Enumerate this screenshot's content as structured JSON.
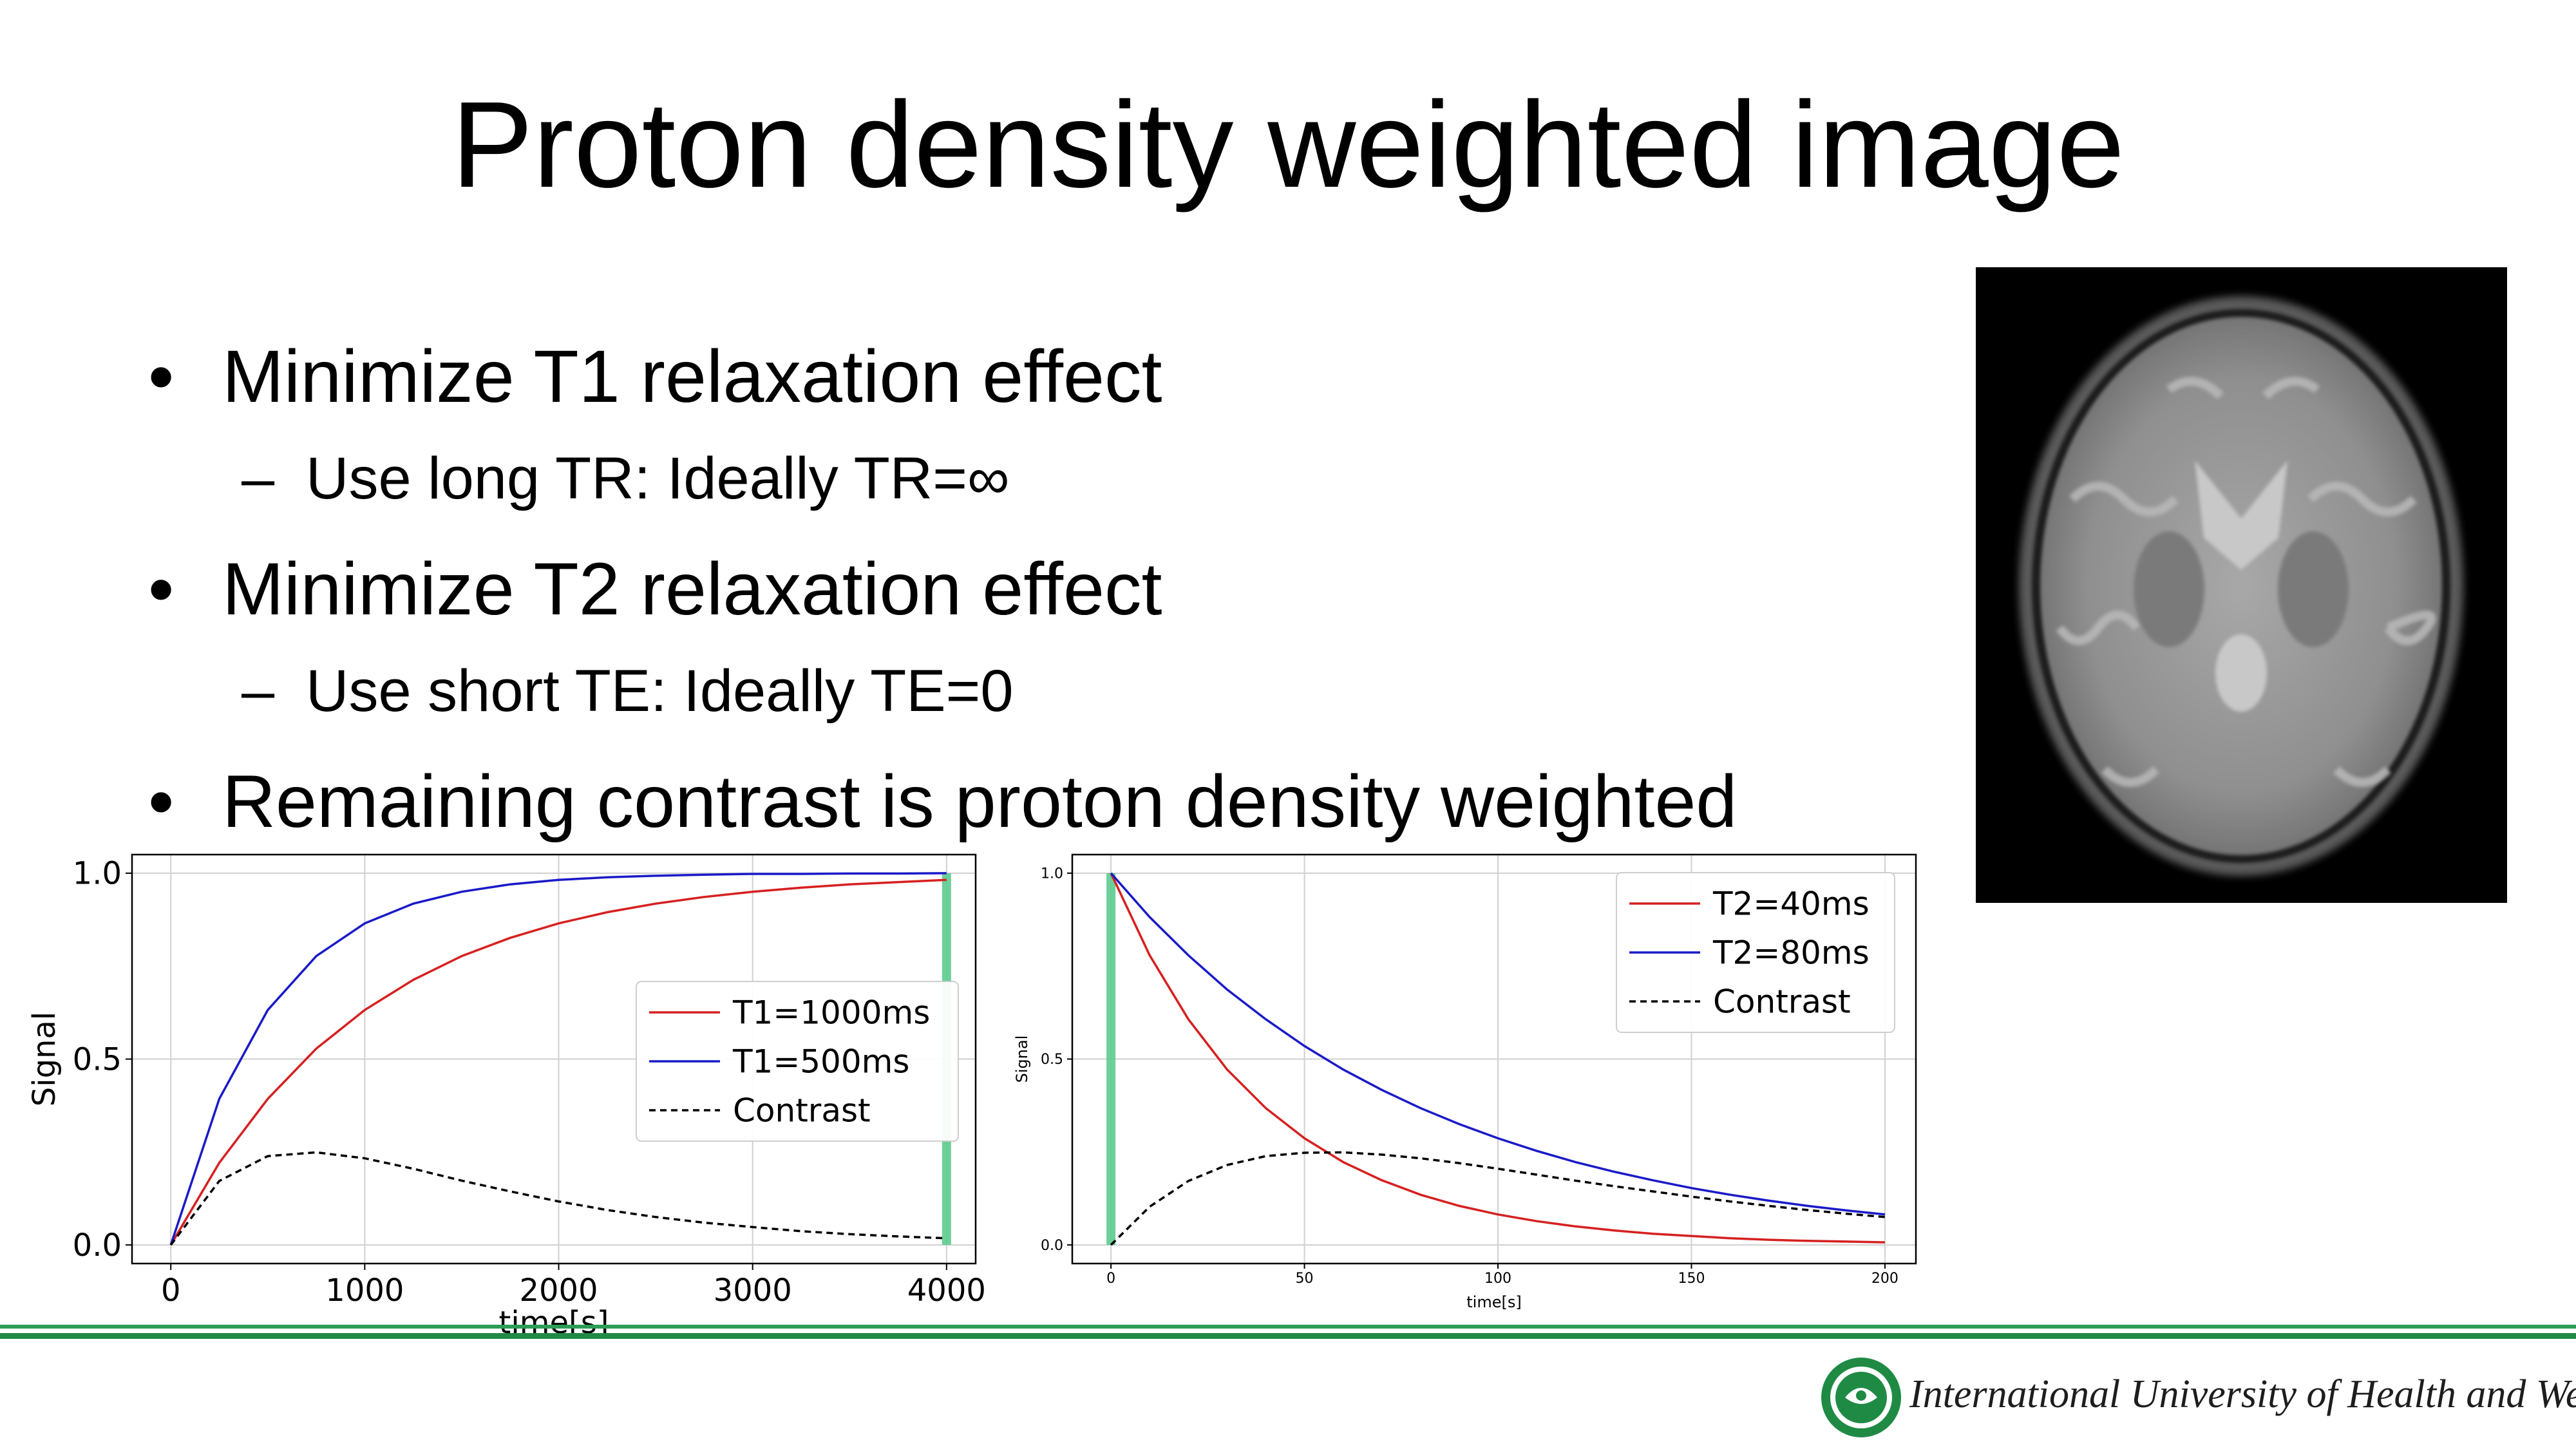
{
  "title": "Proton density weighted image",
  "bullets": [
    {
      "text": "Minimize T1 relaxation effect",
      "sub": "Use long TR: Ideally TR=∞"
    },
    {
      "text": "Minimize T2 relaxation effect",
      "sub": "Use short TE: Ideally TE=0"
    },
    {
      "text": "Remaining contrast is proton density weighted"
    }
  ],
  "footer": {
    "institution": "International University of Health and Welfare"
  },
  "colors": {
    "red": "#d62020",
    "blue": "#1a1ac8",
    "green_marker": "#5dcc8e",
    "footer_green": "#1f8a44"
  },
  "chart_data": [
    {
      "type": "line",
      "title": "",
      "xlabel": "time[s]",
      "ylabel": "Signal",
      "xlim": [
        -200,
        4150
      ],
      "ylim": [
        -0.05,
        1.05
      ],
      "xticks": [
        0,
        1000,
        2000,
        3000,
        4000
      ],
      "xtick_labels": [
        "0",
        "1000",
        "2000",
        "3000",
        "4000"
      ],
      "yticks": [
        0,
        0.5,
        1
      ],
      "ytick_labels": [
        "0.0",
        "0.5",
        "1.0"
      ],
      "grid": true,
      "legend": "center-right",
      "marker_x": 4000,
      "x": [
        0,
        250,
        500,
        750,
        1000,
        1250,
        1500,
        1750,
        2000,
        2250,
        2500,
        2750,
        3000,
        3250,
        3500,
        3750,
        4000
      ],
      "series": [
        {
          "name": "T1=1000ms",
          "color": "red",
          "dash": false,
          "values": [
            0,
            0.221,
            0.393,
            0.528,
            0.632,
            0.713,
            0.777,
            0.826,
            0.865,
            0.895,
            0.918,
            0.936,
            0.95,
            0.961,
            0.97,
            0.976,
            0.982
          ]
        },
        {
          "name": "T1=500ms",
          "color": "blue",
          "dash": false,
          "values": [
            0,
            0.393,
            0.632,
            0.777,
            0.865,
            0.918,
            0.95,
            0.97,
            0.982,
            0.989,
            0.993,
            0.996,
            0.998,
            0.998,
            0.999,
            0.999,
            1.0
          ]
        },
        {
          "name": "Contrast",
          "color": "black",
          "dash": true,
          "values": [
            0,
            0.172,
            0.239,
            0.249,
            0.233,
            0.205,
            0.173,
            0.144,
            0.117,
            0.094,
            0.075,
            0.06,
            0.048,
            0.037,
            0.029,
            0.023,
            0.018
          ]
        }
      ]
    },
    {
      "type": "line",
      "title": "",
      "xlabel": "time[s]",
      "ylabel": "Signal",
      "xlim": [
        -10,
        208
      ],
      "ylim": [
        -0.05,
        1.05
      ],
      "xticks": [
        0,
        50,
        100,
        150,
        200
      ],
      "xtick_labels": [
        "0",
        "50",
        "100",
        "150",
        "200"
      ],
      "yticks": [
        0,
        0.5,
        1
      ],
      "ytick_labels": [
        "0.0",
        "0.5",
        "1.0"
      ],
      "grid": true,
      "legend": "top-right",
      "marker_x": 0,
      "x": [
        0,
        10,
        20,
        30,
        40,
        50,
        60,
        70,
        80,
        90,
        100,
        110,
        120,
        130,
        140,
        150,
        160,
        170,
        180,
        190,
        200
      ],
      "series": [
        {
          "name": "T2=40ms",
          "color": "red",
          "dash": false,
          "values": [
            1.0,
            0.779,
            0.607,
            0.472,
            0.368,
            0.287,
            0.223,
            0.174,
            0.135,
            0.105,
            0.082,
            0.064,
            0.05,
            0.039,
            0.03,
            0.024,
            0.018,
            0.014,
            0.011,
            0.009,
            0.007
          ]
        },
        {
          "name": "T2=80ms",
          "color": "blue",
          "dash": false,
          "values": [
            1.0,
            0.882,
            0.779,
            0.687,
            0.607,
            0.535,
            0.472,
            0.417,
            0.368,
            0.325,
            0.287,
            0.253,
            0.223,
            0.197,
            0.174,
            0.153,
            0.135,
            0.119,
            0.105,
            0.093,
            0.082
          ]
        },
        {
          "name": "Contrast",
          "color": "black",
          "dash": true,
          "values": [
            0,
            0.103,
            0.172,
            0.215,
            0.239,
            0.248,
            0.249,
            0.243,
            0.233,
            0.22,
            0.205,
            0.189,
            0.173,
            0.158,
            0.144,
            0.13,
            0.117,
            0.105,
            0.094,
            0.084,
            0.075
          ]
        }
      ]
    }
  ]
}
